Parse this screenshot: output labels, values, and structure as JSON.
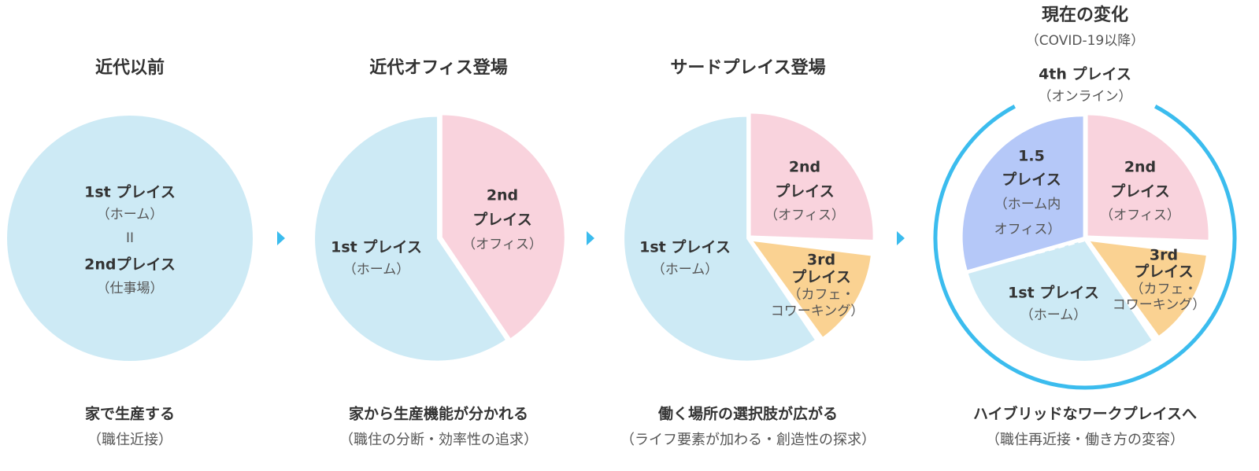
{
  "panels": [
    {
      "title": "近代以前",
      "labels": [
        "1st プレイス",
        "（ホーム）",
        "II",
        "2ndプレイス",
        "（仕事場）"
      ],
      "caption": "家で生産する",
      "note": "（職住近接）"
    },
    {
      "title": "近代オフィス登場",
      "labels": [
        "2nd",
        "プレイス",
        "（オフィス）",
        "1st プレイス",
        "（ホーム）"
      ],
      "caption": "家から生産機能が分かれる",
      "note": "（職住の分断・効率性の追求）"
    },
    {
      "title": "サードプレイス登場",
      "labels": [
        "2nd",
        "プレイス",
        "（オフィス）",
        "3rd",
        "プレイス",
        "（カフェ・",
        "コワーキング）",
        "1st プレイス",
        "（ホーム）"
      ],
      "caption": "働く場所の選択肢が広がる",
      "note": "（ライフ要素が加わる・創造性の探求）"
    },
    {
      "title": "現在の変化",
      "subtitle": "（COVID-19以降）",
      "outer": [
        "4th プレイス",
        "（オンライン）"
      ],
      "labels": [
        "1.5",
        "プレイス",
        "（ホーム内",
        "オフィス）",
        "2nd",
        "プレイス",
        "（オフィス）",
        "3rd",
        "プレイス",
        "（カフェ・",
        "コワーキング）",
        "1st プレイス",
        "（ホーム）"
      ],
      "caption": "ハイブリッドなワークプレイスへ",
      "note": "（職住再近接・働き方の変容）"
    }
  ]
}
